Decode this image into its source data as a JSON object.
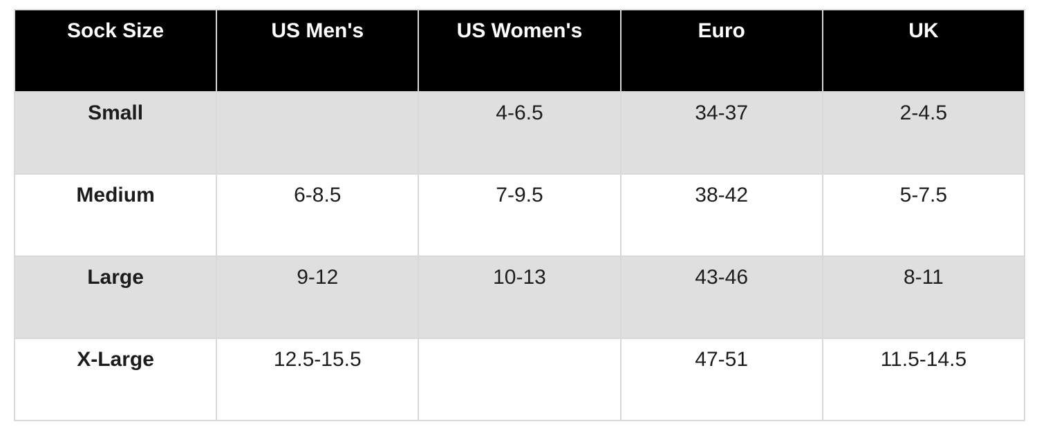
{
  "colors": {
    "header_bg": "#000000",
    "header_text": "#ffffff",
    "alt_row_bg": "#dfdfdf",
    "row_bg": "#ffffff",
    "border": "#d9d9d9",
    "body_text": "#1c1c1c"
  },
  "chart_data": {
    "type": "table",
    "columns": [
      "Sock Size",
      "US Men's",
      "US Women's",
      "Euro",
      "UK"
    ],
    "rows": [
      [
        "Small",
        "",
        "4-6.5",
        "34-37",
        "2-4.5"
      ],
      [
        "Medium",
        "6-8.5",
        "7-9.5",
        "38-42",
        "5-7.5"
      ],
      [
        "Large",
        "9-12",
        "10-13",
        "43-46",
        "8-11"
      ],
      [
        "X-Large",
        "12.5-15.5",
        "",
        "47-51",
        "11.5-14.5"
      ]
    ],
    "layout": {
      "striped": true,
      "stripe_rows": [
        0,
        2
      ],
      "header_position": "top",
      "cell_text_align": "center",
      "cell_vertical_align": "top"
    }
  }
}
